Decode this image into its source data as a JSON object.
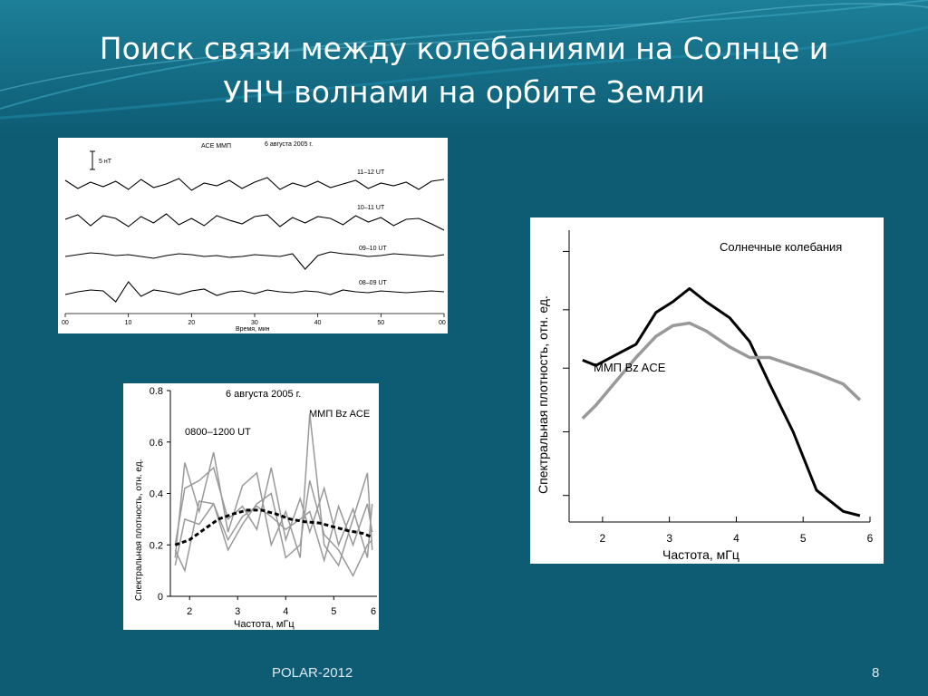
{
  "slide": {
    "title_line1": "Поиск связи между колебаниями на Солнце и",
    "title_line2": "УНЧ волнами на орбите Земли",
    "footer": "POLAR-2012",
    "page_number": "8"
  },
  "colors": {
    "background": "#0d5c74",
    "panel": "#ffffff",
    "black_series": "#000000",
    "gray_series": "#999999"
  },
  "chart_data": [
    {
      "type": "line",
      "title": "6 августа 2005 г.",
      "header": "ACE   ММП",
      "scale_label": "5 нТ",
      "xlabel": "Время, мин",
      "x_ticks": [
        "00",
        "10",
        "20",
        "30",
        "40",
        "50",
        "00"
      ],
      "xlim": [
        0,
        60
      ],
      "series": [
        {
          "name": "11–12 UT",
          "x": [
            0,
            2,
            4,
            6,
            8,
            10,
            12,
            14,
            16,
            18,
            20,
            22,
            24,
            26,
            28,
            30,
            32,
            34,
            36,
            38,
            40,
            42,
            44,
            46,
            48,
            50,
            52,
            54,
            56,
            58,
            60
          ],
          "values": [
            0.5,
            -0.4,
            0.3,
            -0.2,
            0.4,
            -0.5,
            0.6,
            -0.3,
            0.1,
            0.7,
            -0.6,
            0.2,
            -0.1,
            0.5,
            -0.4,
            0.3,
            0.8,
            -0.5,
            0.2,
            -0.2,
            0.4,
            -0.3,
            0.1,
            0.5,
            -0.4,
            0.2,
            -0.1,
            0.3,
            -0.5,
            0.4,
            0.6
          ]
        },
        {
          "name": "10–11 UT",
          "x": [
            0,
            2,
            4,
            6,
            8,
            10,
            12,
            14,
            16,
            18,
            20,
            22,
            24,
            26,
            28,
            30,
            32,
            34,
            36,
            38,
            40,
            42,
            44,
            46,
            48,
            50,
            52,
            54,
            56,
            58,
            60
          ],
          "values": [
            0.2,
            0.7,
            -0.5,
            0.6,
            0.3,
            -0.6,
            0.5,
            -0.2,
            0.8,
            -0.4,
            0.3,
            -0.5,
            0.6,
            0.1,
            -0.3,
            0.5,
            0.7,
            -0.6,
            0.4,
            -0.2,
            0.5,
            0.3,
            -0.4,
            0.6,
            -0.1,
            0.4,
            -0.5,
            0.2,
            0.3,
            -0.3,
            -1.0
          ]
        },
        {
          "name": "09–10 UT",
          "x": [
            0,
            2,
            4,
            6,
            8,
            10,
            12,
            14,
            16,
            18,
            20,
            22,
            24,
            26,
            28,
            30,
            32,
            34,
            36,
            38,
            40,
            42,
            44,
            46,
            48,
            50,
            52,
            54,
            56,
            58,
            60
          ],
          "values": [
            0.1,
            0.3,
            0.5,
            0.4,
            0.2,
            0.3,
            0.1,
            -0.1,
            0.2,
            0.4,
            0.3,
            0.1,
            0.2,
            0.0,
            0.1,
            0.3,
            0.2,
            0.1,
            0.4,
            -1.3,
            0.2,
            0.6,
            0.4,
            0.3,
            0.1,
            0.2,
            0.4,
            0.3,
            0.2,
            0.1,
            0.3
          ]
        },
        {
          "name": "08–09 UT",
          "x": [
            0,
            2,
            4,
            6,
            8,
            10,
            12,
            14,
            16,
            18,
            20,
            22,
            24,
            26,
            28,
            30,
            32,
            34,
            36,
            38,
            40,
            42,
            44,
            46,
            48,
            50,
            52,
            54,
            56,
            58,
            60
          ],
          "values": [
            -0.2,
            0.1,
            0.3,
            0.2,
            -1.0,
            1.2,
            -0.4,
            0.3,
            0.1,
            -0.2,
            0.2,
            0.4,
            -0.3,
            0.1,
            0.2,
            -0.1,
            0.3,
            0.1,
            0.0,
            0.2,
            0.1,
            -0.2,
            0.3,
            0.1,
            0.0,
            0.2,
            0.1,
            0.0,
            0.1,
            0.2,
            0.1
          ]
        }
      ]
    },
    {
      "type": "line",
      "title": "6 августа 2005 г.",
      "label_left": "0800–1200 UT",
      "label_right": "ММП Bz ACE",
      "xlabel": "Частота, мГц",
      "ylabel": "Спектральная плотность, отн. ед.",
      "xlim": [
        1.6,
        5.9
      ],
      "ylim": [
        0,
        0.8
      ],
      "x_ticks": [
        "2",
        "3",
        "4",
        "5",
        "6"
      ],
      "y_ticks": [
        "0",
        "0.2",
        "0.4",
        "0.6",
        "0.8"
      ],
      "series": [
        {
          "x": [
            1.7,
            1.9,
            2.2,
            2.5,
            2.8,
            3.1,
            3.4,
            3.7,
            4.0,
            4.3,
            4.5,
            4.8,
            5.1,
            5.4,
            5.7,
            5.8
          ],
          "values": [
            0.15,
            0.52,
            0.33,
            0.56,
            0.25,
            0.43,
            0.48,
            0.2,
            0.33,
            0.15,
            0.71,
            0.2,
            0.12,
            0.3,
            0.48,
            0.18
          ]
        },
        {
          "x": [
            1.7,
            1.9,
            2.2,
            2.5,
            2.8,
            3.1,
            3.4,
            3.7,
            4.0,
            4.3,
            4.5,
            4.8,
            5.1,
            5.4,
            5.7,
            5.8
          ],
          "values": [
            0.2,
            0.42,
            0.45,
            0.5,
            0.3,
            0.35,
            0.26,
            0.5,
            0.22,
            0.38,
            0.25,
            0.42,
            0.2,
            0.34,
            0.15,
            0.36
          ]
        },
        {
          "x": [
            1.7,
            1.9,
            2.2,
            2.5,
            2.8,
            3.1,
            3.4,
            3.7,
            4.0,
            4.3,
            4.5,
            4.8,
            5.1,
            5.4,
            5.7,
            5.8
          ],
          "values": [
            0.12,
            0.3,
            0.28,
            0.36,
            0.18,
            0.28,
            0.36,
            0.4,
            0.15,
            0.2,
            0.45,
            0.24,
            0.18,
            0.08,
            0.2,
            0.22
          ]
        },
        {
          "x": [
            1.7,
            1.9,
            2.2,
            2.5,
            2.8,
            3.1,
            3.4,
            3.7,
            4.0,
            4.3,
            4.5,
            4.8,
            5.1,
            5.4,
            5.7,
            5.8
          ],
          "values": [
            0.18,
            0.1,
            0.37,
            0.36,
            0.22,
            0.31,
            0.35,
            0.31,
            0.26,
            0.3,
            0.33,
            0.14,
            0.35,
            0.2,
            0.36,
            0.25
          ]
        }
      ],
      "mean_series": {
        "x": [
          1.7,
          2.0,
          2.3,
          2.6,
          2.9,
          3.2,
          3.5,
          3.8,
          4.1,
          4.4,
          4.7,
          5.0,
          5.3,
          5.6,
          5.8
        ],
        "values": [
          0.2,
          0.22,
          0.26,
          0.3,
          0.32,
          0.335,
          0.335,
          0.32,
          0.3,
          0.29,
          0.285,
          0.27,
          0.255,
          0.245,
          0.23
        ]
      }
    },
    {
      "type": "line",
      "xlabel": "Частота, мГц",
      "ylabel": "Спектральная плотность, отн. ед.",
      "xlim": [
        1.5,
        6.0
      ],
      "ylim": [
        0,
        5.5
      ],
      "x_ticks": [
        "2",
        "3",
        "4",
        "5",
        "6"
      ],
      "series": [
        {
          "name": "Солнечные колебания",
          "color": "#000000",
          "x": [
            1.7,
            1.9,
            2.2,
            2.5,
            2.8,
            3.05,
            3.3,
            3.55,
            3.9,
            4.2,
            4.5,
            4.85,
            5.2,
            5.6,
            5.85
          ],
          "values": [
            3.05,
            2.95,
            3.15,
            3.35,
            3.95,
            4.15,
            4.4,
            4.15,
            3.85,
            3.4,
            2.6,
            1.7,
            0.6,
            0.2,
            0.12
          ]
        },
        {
          "name": "ММП Bz ACE",
          "color": "#999999",
          "x": [
            1.7,
            1.9,
            2.2,
            2.5,
            2.8,
            3.05,
            3.3,
            3.55,
            3.9,
            4.2,
            4.5,
            4.85,
            5.2,
            5.6,
            5.85
          ],
          "values": [
            1.95,
            2.2,
            2.65,
            3.1,
            3.5,
            3.7,
            3.75,
            3.6,
            3.3,
            3.1,
            3.1,
            2.95,
            2.8,
            2.6,
            2.3
          ]
        }
      ]
    }
  ]
}
